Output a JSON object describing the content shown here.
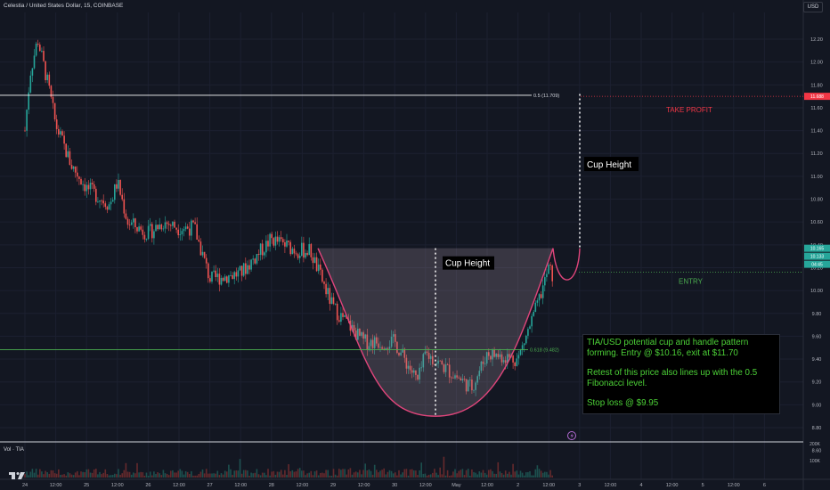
{
  "header": {
    "symbol_line": "Celestia / United States Dollar, 15, COINBASE",
    "currency_button": "USD"
  },
  "colors": {
    "background": "#131722",
    "grid": "#1c2030",
    "up_candle": "#26a69a",
    "down_candle": "#ef5350",
    "cup_outline": "#e0457b",
    "cup_fill": "#9c8a98",
    "fib_05": "#ffffff",
    "fib_0618": "#4caf50",
    "take_profit": "#f23645",
    "entry": "#4caf50",
    "note_text": "#4cd137"
  },
  "chart_data": {
    "type": "candlestick",
    "symbol": "TIA/USD",
    "timeframe": "15",
    "exchange": "COINBASE",
    "y_axis": {
      "min": 8.6,
      "max": 12.2,
      "ticks": [
        "12.20",
        "12.00",
        "11.80",
        "11.60",
        "11.40",
        "11.20",
        "11.00",
        "10.80",
        "10.60",
        "10.40",
        "10.20",
        "10.00",
        "9.80",
        "9.60",
        "9.40",
        "9.20",
        "9.00",
        "8.80",
        "8.60"
      ]
    },
    "x_axis": {
      "ticks": [
        "24",
        "12:00",
        "25",
        "12:00",
        "26",
        "12:00",
        "27",
        "12:00",
        "28",
        "12:00",
        "29",
        "12:00",
        "30",
        "12:00",
        "May",
        "12:00",
        "2",
        "12:00",
        "3",
        "12:00",
        "4",
        "12:00",
        "5",
        "12:00",
        "6"
      ]
    },
    "price_path": [
      {
        "x": "24",
        "y": 11.4
      },
      {
        "x": "24 02:00",
        "y": 11.9
      },
      {
        "x": "24 05:00",
        "y": 12.2
      },
      {
        "x": "24 09:00",
        "y": 11.8
      },
      {
        "x": "12:00",
        "y": 11.45
      },
      {
        "x": "24 18:00",
        "y": 11.1
      },
      {
        "x": "25",
        "y": 10.9
      },
      {
        "x": "25 09:00",
        "y": 10.75
      },
      {
        "x": "12:00",
        "y": 10.95
      },
      {
        "x": "25 16:00",
        "y": 10.6
      },
      {
        "x": "26",
        "y": 10.5
      },
      {
        "x": "26 06:00",
        "y": 10.6
      },
      {
        "x": "12:00",
        "y": 10.55
      },
      {
        "x": "26 18:00",
        "y": 10.55
      },
      {
        "x": "27",
        "y": 10.1
      },
      {
        "x": "12:00",
        "y": 10.15
      },
      {
        "x": "28",
        "y": 10.45
      },
      {
        "x": "28 10:00",
        "y": 10.35
      },
      {
        "x": "28 15:00",
        "y": 10.35
      },
      {
        "x": "29",
        "y": 9.85
      },
      {
        "x": "29 08:00",
        "y": 9.65
      },
      {
        "x": "12:00",
        "y": 9.55
      },
      {
        "x": "30",
        "y": 9.55
      },
      {
        "x": "30 09:00",
        "y": 9.2
      },
      {
        "x": "12:00",
        "y": 9.45
      },
      {
        "x": "May",
        "y": 9.25
      },
      {
        "x": "May 06:00",
        "y": 9.15
      },
      {
        "x": "12:00",
        "y": 9.45
      },
      {
        "x": "2",
        "y": 9.4
      },
      {
        "x": "2 08:00",
        "y": 9.9
      },
      {
        "x": "12:00",
        "y": 10.2
      },
      {
        "x": "2 14:00",
        "y": 10.1
      }
    ],
    "cup_and_handle": {
      "rim_price": 10.37,
      "bottom_price": 8.9,
      "bottom_time": "12:00 (Apr 30)",
      "handle_low": 10.08,
      "handle_end": 10.37
    },
    "levels": [
      {
        "name": "fib_0.5",
        "label": "0.5 (11.709)",
        "value": 11.709,
        "color": "#ffffff"
      },
      {
        "name": "fib_0.618",
        "label": "0.618 (9.482)",
        "value": 9.482,
        "color": "#4caf50"
      },
      {
        "name": "take_profit",
        "label": "TAKE PROFIT",
        "value": 11.7,
        "color": "#f23645"
      },
      {
        "name": "entry",
        "label": "ENTRY",
        "value": 10.16,
        "color": "#4caf50"
      }
    ],
    "price_badges": [
      {
        "value": "11.688",
        "color": "#f23645"
      },
      {
        "value": "10.165",
        "color": "#26a69a"
      },
      {
        "value": "10.133",
        "color": "#26a69a"
      },
      {
        "value": "04:45",
        "color": "#26a69a"
      }
    ],
    "annotations": [
      {
        "name": "cup-height-left",
        "text": "Cup Height"
      },
      {
        "name": "cup-height-right",
        "text": "Cup Height"
      }
    ],
    "volume_pane": {
      "label": "Vol · TIA",
      "ticks": [
        "200K",
        "100K"
      ]
    }
  },
  "note": {
    "line1": "TIA/USD potential cup and handle pattern forming. Entry @ $10.16, exit at $11.70",
    "line2": "Retest of this price also lines up with the 0.5 Fibonacci level.",
    "line3": "Stop loss @ $9.95"
  }
}
